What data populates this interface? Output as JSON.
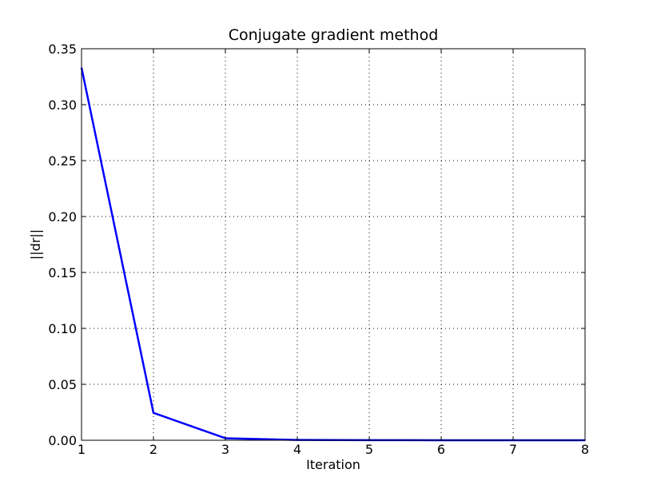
{
  "chart_data": {
    "type": "line",
    "title": "Conjugate gradient method",
    "xlabel": "Iteration",
    "ylabel": "||dr||",
    "xlim": [
      1,
      8
    ],
    "ylim": [
      0,
      0.35
    ],
    "x_ticks": [
      "1",
      "2",
      "3",
      "4",
      "5",
      "6",
      "7",
      "8"
    ],
    "y_ticks": [
      "0.00",
      "0.05",
      "0.10",
      "0.15",
      "0.20",
      "0.25",
      "0.30",
      "0.35"
    ],
    "grid": true,
    "series": [
      {
        "color": "#0000ff",
        "x": [
          1,
          2,
          3,
          4,
          5,
          6,
          7,
          8
        ],
        "values": [
          0.333,
          0.0245,
          0.0018,
          0.0003,
          0.0001,
          0.0,
          0.0,
          0.0
        ]
      }
    ],
    "baseline_color": "#ff0000"
  }
}
